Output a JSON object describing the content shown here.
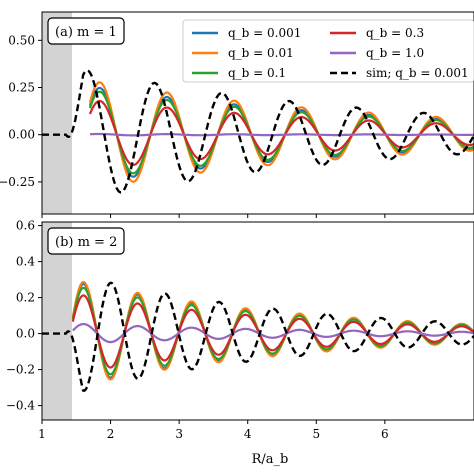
{
  "chart_data": [
    {
      "type": "line",
      "panel_label": "(a) m = 1",
      "xlim": [
        1,
        7.3
      ],
      "ylim": [
        -0.42,
        0.65
      ],
      "yticks": [
        "−0.25",
        "0.00",
        "0.25",
        "0.50"
      ],
      "ytick_values": [
        -0.25,
        0.0,
        0.25,
        0.5
      ],
      "shaded_region_x": [
        1.0,
        1.4
      ],
      "legend_position": "top-right",
      "legend": [
        {
          "label": "q_b = 0.001",
          "color": "#1f77b4",
          "dashed": false
        },
        {
          "label": "q_b = 0.01",
          "color": "#ff7f0e",
          "dashed": false
        },
        {
          "label": "q_b = 0.1",
          "color": "#2ca02c",
          "dashed": false
        },
        {
          "label": "q_b = 0.3",
          "color": "#d62728",
          "dashed": false
        },
        {
          "label": "q_b = 1.0",
          "color": "#9467bd",
          "dashed": false
        },
        {
          "label": "sim; q_b = 0.001",
          "color": "#000000",
          "dashed": true
        }
      ],
      "series": [
        {
          "name": "q_b = 0.001",
          "color": "#1f77b4",
          "x_start": 1.7,
          "amplitude": 0.25,
          "phase": 1.6
        },
        {
          "name": "q_b = 0.01",
          "color": "#ff7f0e",
          "x_start": 1.7,
          "amplitude": 0.28,
          "phase": 1.6
        },
        {
          "name": "q_b = 0.1",
          "color": "#2ca02c",
          "x_start": 1.7,
          "amplitude": 0.23,
          "phase": 1.6
        },
        {
          "name": "q_b = 0.3",
          "color": "#d62728",
          "x_start": 1.7,
          "amplitude": 0.18,
          "phase": 1.6
        },
        {
          "name": "q_b = 1.0",
          "color": "#9467bd",
          "x_start": 1.7,
          "amplitude": 0.004,
          "phase": 1.6
        },
        {
          "name": "sim; q_b = 0.001",
          "color": "#000000",
          "dashed": true,
          "x_start": 1.0,
          "amplitude": 0.33,
          "phase": 2.4
        }
      ]
    },
    {
      "type": "line",
      "panel_label": "(b) m = 2",
      "xlim": [
        1,
        7.3
      ],
      "ylim": [
        -0.48,
        0.62
      ],
      "yticks": [
        "−0.4",
        "−0.2",
        "0.0",
        "0.2",
        "0.4",
        "0.6"
      ],
      "ytick_values": [
        -0.4,
        -0.2,
        0.0,
        0.2,
        0.4,
        0.6
      ],
      "xticks": [
        "1",
        "2",
        "3",
        "4",
        "5",
        "6"
      ],
      "xtick_values": [
        1,
        2,
        3,
        4,
        5,
        6
      ],
      "xlabel": "R/a_b",
      "shaded_region_x": [
        1.0,
        1.4
      ],
      "series": [
        {
          "name": "q_b = 0.001",
          "color": "#1f77b4",
          "x_start": 1.45,
          "amplitude": 0.26,
          "phase": 2.2
        },
        {
          "name": "q_b = 0.01",
          "color": "#ff7f0e",
          "x_start": 1.45,
          "amplitude": 0.27,
          "phase": 2.2
        },
        {
          "name": "q_b = 0.1",
          "color": "#2ca02c",
          "x_start": 1.45,
          "amplitude": 0.24,
          "phase": 2.2
        },
        {
          "name": "q_b = 0.3",
          "color": "#d62728",
          "x_start": 1.45,
          "amplitude": 0.2,
          "phase": 2.2
        },
        {
          "name": "q_b = 1.0",
          "color": "#9467bd",
          "x_start": 1.45,
          "amplitude": 0.05,
          "phase": 2.2
        },
        {
          "name": "sim; q_b = 0.001",
          "color": "#000000",
          "dashed": true,
          "x_start": 1.0,
          "amplitude": 0.3,
          "phase": 2.6
        }
      ]
    }
  ]
}
